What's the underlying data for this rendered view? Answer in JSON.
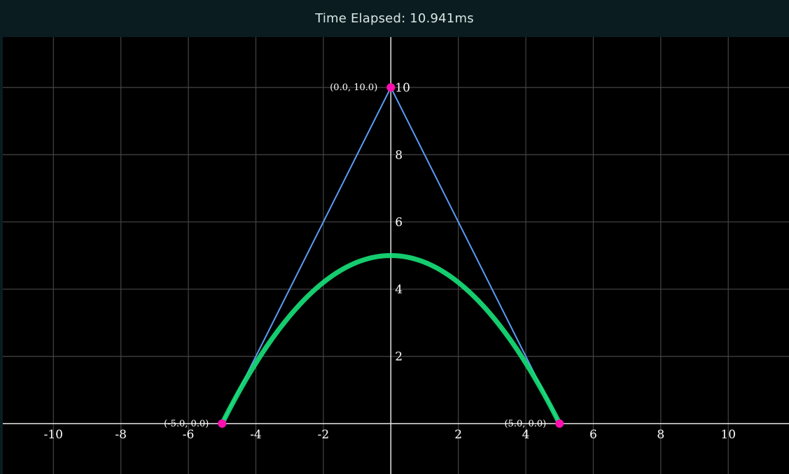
{
  "header": {
    "label": "Time Elapsed:",
    "value": "10.941ms"
  },
  "colors": {
    "background": "#000000",
    "header_bg": "#0a1c1f",
    "grid": "#444444",
    "axis": "#e6e6e6",
    "control_polygon": "#5a9cf5",
    "curve": "#17e27a",
    "control_point": "#ff0fb0"
  },
  "chart_data": {
    "type": "line",
    "xlim": [
      -11.5,
      11.8
    ],
    "ylim": [
      -1.5,
      11.5
    ],
    "grid": true,
    "x_ticks": [
      -10,
      -8,
      -6,
      -4,
      -2,
      2,
      4,
      6,
      8,
      10
    ],
    "y_ticks": [
      2,
      4,
      6,
      8,
      10
    ],
    "control_points": [
      {
        "x": -5.0,
        "y": 0.0,
        "label": "(-5.0, 0.0)"
      },
      {
        "x": 0.0,
        "y": 10.0,
        "label": "(0.0, 10.0)"
      },
      {
        "x": 5.0,
        "y": 0.0,
        "label": "(5.0, 0.0)"
      }
    ],
    "series": [
      {
        "kind": "control-polygon",
        "points": [
          [
            -5.0,
            0.0
          ],
          [
            0.0,
            10.0
          ],
          [
            5.0,
            0.0
          ]
        ]
      },
      {
        "kind": "quadratic-bezier-curve",
        "points": [
          [
            -5.0,
            0.0
          ],
          [
            -4.0,
            1.8
          ],
          [
            -3.0,
            3.2
          ],
          [
            -2.0,
            4.2
          ],
          [
            -1.0,
            4.8
          ],
          [
            0.0,
            5.0
          ],
          [
            1.0,
            4.8
          ],
          [
            2.0,
            4.2
          ],
          [
            3.0,
            3.2
          ],
          [
            4.0,
            1.8
          ],
          [
            5.0,
            0.0
          ]
        ]
      }
    ]
  }
}
